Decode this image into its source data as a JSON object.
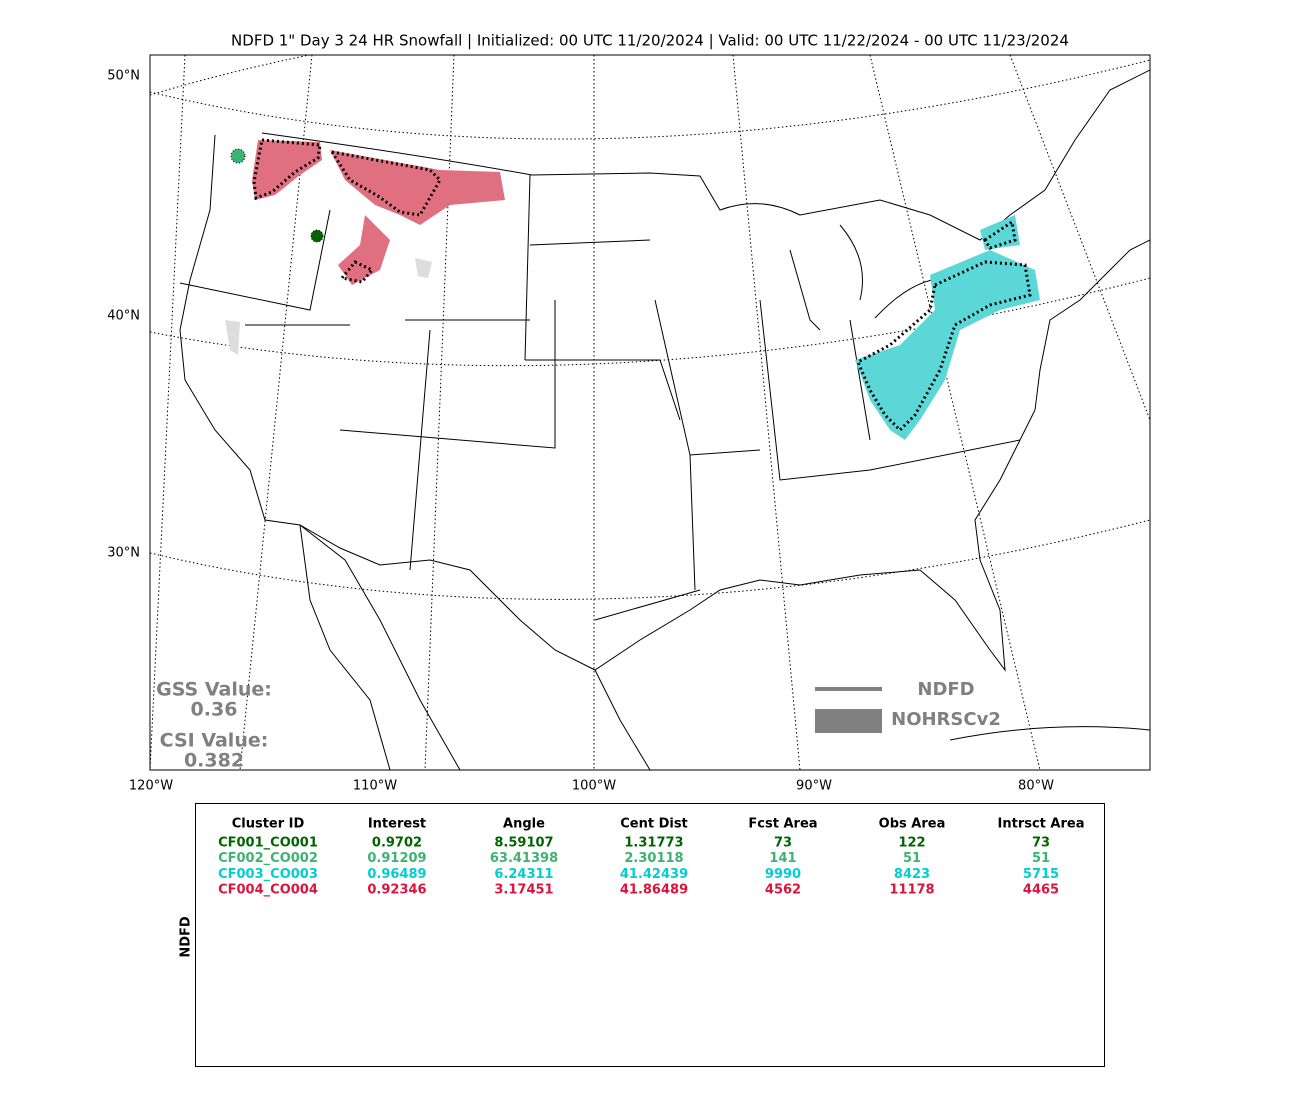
{
  "header": {
    "title": "NDFD 1\" Day 3 24 HR Snowfall | Initialized: 00 UTC 11/20/2024 | Valid: 00 UTC 11/22/2024 - 00 UTC 11/23/2024"
  },
  "map": {
    "lat_labels": [
      "50°N",
      "40°N",
      "30°N"
    ],
    "lon_labels": [
      "120°W",
      "110°W",
      "100°W",
      "90°W",
      "80°W"
    ],
    "legend": [
      {
        "label": "NDFD",
        "color": "#808080"
      },
      {
        "label": "NOHRSCv2",
        "color": "#808080"
      }
    ],
    "stats": [
      {
        "label": "GSS Value:",
        "value": "0.36"
      },
      {
        "label": "CSI Value:",
        "value": "0.382"
      }
    ]
  },
  "table": {
    "side_label": "NDFD",
    "headers": [
      "Cluster ID",
      "Interest",
      "Angle",
      "Cent Dist",
      "Fcst Area",
      "Obs Area",
      "Intrsct Area"
    ],
    "rows": [
      {
        "color": "#006400",
        "cells": [
          "CF001_CO001",
          "0.9702",
          "8.59107",
          "1.31773",
          "73",
          "122",
          "73"
        ]
      },
      {
        "color": "#3cb371",
        "cells": [
          "CF002_CO002",
          "0.91209",
          "63.41398",
          "2.30118",
          "141",
          "51",
          "51"
        ]
      },
      {
        "color": "#00ced1",
        "cells": [
          "CF003_CO003",
          "0.96489",
          "6.24311",
          "41.42439",
          "9990",
          "8423",
          "5715"
        ]
      },
      {
        "color": "#dc143c",
        "cells": [
          "CF004_CO004",
          "0.92346",
          "3.17451",
          "41.86489",
          "4562",
          "11178",
          "4465"
        ]
      }
    ]
  }
}
